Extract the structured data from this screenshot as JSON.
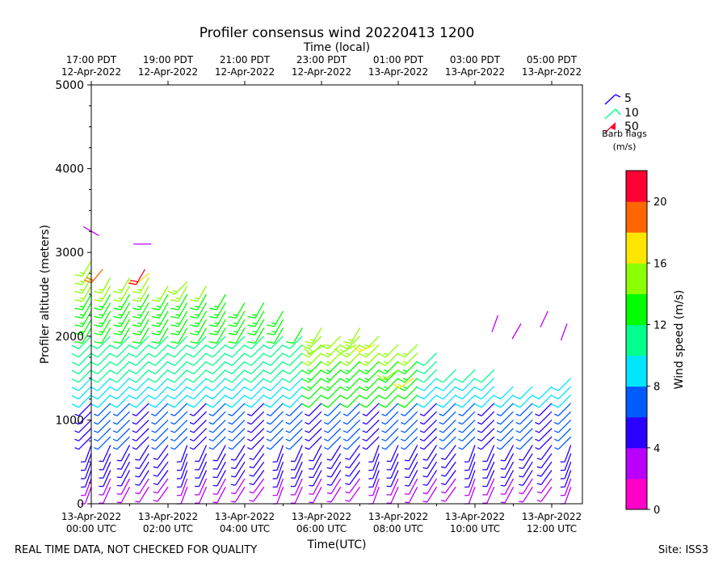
{
  "colors": {
    "scale": [
      "#ff00c8",
      "#b900ff",
      "#2a00ff",
      "#005cff",
      "#00e6ff",
      "#00ff8c",
      "#00ff00",
      "#8cff00",
      "#ffe600",
      "#ff6600",
      "#ff0033"
    ],
    "frame": "#000000"
  },
  "chart_data": {
    "type": "wind-barb",
    "title": "Profiler consensus wind 20220413 1200",
    "top_axis_label": "Time (local)",
    "xlabel": "Time(UTC)",
    "ylabel": "Profiler altitude (meters)",
    "colorbar_label": "Wind speed (m/s)",
    "xlim_hours_utc": [
      0,
      12.8
    ],
    "ylim": [
      0,
      5000
    ],
    "y_ticks": [
      "0",
      "1000",
      "2000",
      "3000",
      "4000",
      "5000"
    ],
    "y_tick_values": [
      0,
      1000,
      2000,
      3000,
      4000,
      5000
    ],
    "x_ticks_utc": [
      {
        "hour": 0,
        "date": "13-Apr-2022",
        "time": "00:00 UTC"
      },
      {
        "hour": 2,
        "date": "13-Apr-2022",
        "time": "02:00 UTC"
      },
      {
        "hour": 4,
        "date": "13-Apr-2022",
        "time": "04:00 UTC"
      },
      {
        "hour": 6,
        "date": "13-Apr-2022",
        "time": "06:00 UTC"
      },
      {
        "hour": 8,
        "date": "13-Apr-2022",
        "time": "08:00 UTC"
      },
      {
        "hour": 10,
        "date": "13-Apr-2022",
        "time": "10:00 UTC"
      },
      {
        "hour": 12,
        "date": "13-Apr-2022",
        "time": "12:00 UTC"
      }
    ],
    "x_ticks_local": [
      {
        "hour": 0,
        "time": "17:00 PDT",
        "date": "12-Apr-2022"
      },
      {
        "hour": 2,
        "time": "19:00 PDT",
        "date": "12-Apr-2022"
      },
      {
        "hour": 4,
        "time": "21:00 PDT",
        "date": "12-Apr-2022"
      },
      {
        "hour": 6,
        "time": "23:00 PDT",
        "date": "12-Apr-2022"
      },
      {
        "hour": 8,
        "time": "01:00 PDT",
        "date": "13-Apr-2022"
      },
      {
        "hour": 10,
        "time": "03:00 PDT",
        "date": "13-Apr-2022"
      },
      {
        "hour": 12,
        "time": "05:00 PDT",
        "date": "13-Apr-2022"
      }
    ],
    "colorbar_range": [
      0,
      22
    ],
    "colorbar_ticks": [
      0,
      4,
      8,
      12,
      16,
      20
    ],
    "barb_legend": {
      "entries": [
        {
          "label": "5",
          "speed": 5
        },
        {
          "label": "10",
          "speed": 10
        },
        {
          "label": "50",
          "speed": 50
        }
      ],
      "caption": [
        "Barb flags",
        "(m/s)"
      ]
    },
    "hour_offsets": [
      0,
      0.5,
      1,
      1.5,
      2,
      2.5,
      3,
      3.5,
      4,
      4.5,
      5,
      5.5,
      6,
      6.5,
      7,
      7.5,
      8,
      8.5,
      9,
      9.5,
      10,
      10.5,
      11,
      11.5,
      12,
      12.5
    ],
    "layers": [
      {
        "name": "high",
        "y_from": 1300,
        "y_to": 2700,
        "speed": 9,
        "dir": 225,
        "top_alt": [
          2900,
          2750,
          2780,
          2700,
          2600,
          2650,
          2600,
          2550,
          2450,
          2400,
          2350,
          2100,
          2150,
          2050,
          2100,
          2050,
          1950,
          1900,
          1800,
          1600,
          1600,
          1600,
          1400,
          1450,
          1450,
          1500
        ]
      },
      {
        "name": "mid",
        "y_from": 800,
        "y_to": 1300,
        "speed": 5,
        "dir": 225
      },
      {
        "name": "low",
        "y_from": 200,
        "y_to": 800,
        "speed": 3,
        "dir": 200
      }
    ],
    "sparse_barbs": [
      {
        "hour": 0.2,
        "alt": 3200,
        "speed": 2,
        "dir": 300
      },
      {
        "hour": 1.1,
        "alt": 3100,
        "speed": 2,
        "dir": 90
      },
      {
        "hour": 10.6,
        "alt": 2250,
        "speed": 2,
        "dir": 200
      },
      {
        "hour": 11.2,
        "alt": 2150,
        "speed": 2,
        "dir": 210
      },
      {
        "hour": 11.9,
        "alt": 2300,
        "speed": 2,
        "dir": 205
      },
      {
        "hour": 12.4,
        "alt": 2150,
        "speed": 2,
        "dir": 200
      }
    ],
    "highlight_barbs": [
      {
        "hour": 0.3,
        "alt": 2800,
        "speed": 18,
        "dir": 220
      },
      {
        "hour": 1.5,
        "alt": 2750,
        "speed": 16,
        "dir": 230
      },
      {
        "hour": 1.4,
        "alt": 2800,
        "speed": 22,
        "dir": 210
      },
      {
        "hour": 2.5,
        "alt": 2650,
        "speed": 15,
        "dir": 225
      },
      {
        "hour": 6.1,
        "alt": 1900,
        "speed": 14,
        "dir": 240
      },
      {
        "hour": 6.9,
        "alt": 1900,
        "speed": 15,
        "dir": 240
      },
      {
        "hour": 7.4,
        "alt": 1900,
        "speed": 16,
        "dir": 245
      },
      {
        "hour": 8.0,
        "alt": 1600,
        "speed": 15,
        "dir": 235
      },
      {
        "hour": 8.4,
        "alt": 1500,
        "speed": 16,
        "dir": 235
      }
    ]
  },
  "footer": {
    "disclaimer": "REAL TIME DATA, NOT CHECKED FOR QUALITY",
    "site": "Site: ISS3"
  }
}
